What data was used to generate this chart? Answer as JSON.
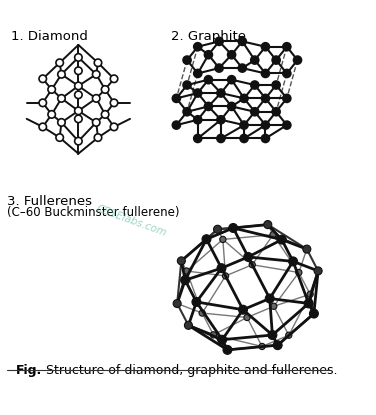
{
  "fig_label": "Fig.",
  "fig_caption": "Structure of diamond, graphite and fullerenes.",
  "label1": "1. Diamond",
  "label2": "2. Graphite",
  "label3": "3. Fullerenes",
  "label3b": "(C–60 Buckminster fullerene)",
  "watermark": "CBSElabs.com",
  "bg_color": "#ffffff",
  "line_color": "#111111",
  "node_facecolor": "#ffffff",
  "node_edgecolor": "#111111"
}
